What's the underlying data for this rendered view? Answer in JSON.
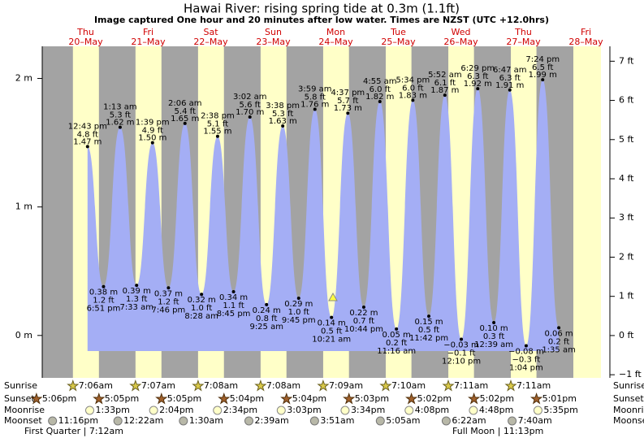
{
  "chart_data": {
    "type": "tide",
    "title": "Hawai River: rising  spring tide at 0.3m (1.1ft)",
    "subtitle": "Image captured One hour and 20 minutes after low water. Times are NZST (UTC +12.0hrs)",
    "days": [
      {
        "weekday": "Thu",
        "date": "20–May"
      },
      {
        "weekday": "Fri",
        "date": "21–May"
      },
      {
        "weekday": "Sat",
        "date": "22–May"
      },
      {
        "weekday": "Sun",
        "date": "23–May"
      },
      {
        "weekday": "Mon",
        "date": "24–May"
      },
      {
        "weekday": "Tue",
        "date": "25–May"
      },
      {
        "weekday": "Wed",
        "date": "26–May"
      },
      {
        "weekday": "Thu",
        "date": "27–May"
      },
      {
        "weekday": "Fri",
        "date": "28–May"
      }
    ],
    "ylim": [
      -0.33,
      2.25
    ],
    "yticks": [
      {
        "value": 0,
        "label": "0 m"
      },
      {
        "value": 1,
        "label": "1 m"
      },
      {
        "value": 2,
        "label": "2 m"
      }
    ],
    "y2lim": [
      -1.08,
      7.38
    ],
    "y2ticks": [
      {
        "value": -1,
        "label": "−1 ft"
      },
      {
        "value": 0,
        "label": "0 ft"
      },
      {
        "value": 1,
        "label": "1 ft"
      },
      {
        "value": 2,
        "label": "2 ft"
      },
      {
        "value": 3,
        "label": "3 ft"
      },
      {
        "value": 4,
        "label": "4 ft"
      },
      {
        "value": 5,
        "label": "5 ft"
      },
      {
        "value": 6,
        "label": "6 ft"
      },
      {
        "value": 7,
        "label": "7 ft"
      }
    ],
    "color": "#a4aef5",
    "tides": {
      "times": [
        "12:43 pm",
        "6:51 pm",
        "1:13 am",
        "7:33 am",
        "1:39 pm",
        "7:46 pm",
        "2:06 am",
        "8:28 am",
        "2:38 pm",
        "8:45 pm",
        "3:02 am",
        "9:25 am",
        "3:38 pm",
        "9:45 pm",
        "3:59 am",
        "10:21 am",
        "4:37 pm",
        "10:44 pm",
        "4:55 am",
        "11:16 am",
        "5:34 pm",
        "11:42 pm",
        "5:52 am",
        "12:10 pm",
        "6:29 pm",
        "12:39 am",
        "6:47 am",
        "1:04 pm",
        "7:24 pm",
        "1:35 am"
      ],
      "values": [
        1.47,
        0.38,
        1.62,
        0.39,
        1.5,
        0.37,
        1.65,
        0.32,
        1.55,
        0.34,
        1.7,
        0.24,
        1.63,
        0.29,
        1.76,
        0.14,
        1.73,
        0.22,
        1.82,
        0.05,
        1.83,
        0.15,
        1.87,
        -0.03,
        1.92,
        0.1,
        1.91,
        -0.08,
        1.99,
        0.06
      ],
      "value_labels": [
        "1.47 m",
        "0.38 m",
        "1.62 m",
        "0.39 m",
        "1.50 m",
        "0.37 m",
        "1.65 m",
        "0.32 m",
        "1.55 m",
        "0.34 m",
        "1.70 m",
        "0.24 m",
        "1.63 m",
        "0.29 m",
        "1.76 m",
        "0.14 m",
        "1.73 m",
        "0.22 m",
        "1.82 m",
        "0.05 m",
        "1.83 m",
        "0.15 m",
        "1.87 m",
        "−0.03 m",
        "1.92 m",
        "0.10 m",
        "1.91 m",
        "−0.08 m",
        "1.99 m",
        "0.06 m"
      ],
      "ft_labels": [
        "4.8 ft",
        "1.2 ft",
        "5.3 ft",
        "1.3 ft",
        "4.9 ft",
        "1.2 ft",
        "5.4 ft",
        "1.0 ft",
        "5.1 ft",
        "1.1 ft",
        "5.6 ft",
        "0.8 ft",
        "5.3 ft",
        "1.0 ft",
        "5.8 ft",
        "0.5 ft",
        "5.7 ft",
        "0.7 ft",
        "6.0 ft",
        "0.2 ft",
        "6.0 ft",
        "0.5 ft",
        "6.1 ft",
        "−0.1 ft",
        "6.3 ft",
        "0.3 ft",
        "6.3 ft",
        "−0.3 ft",
        "6.5 ft",
        "0.2 ft"
      ]
    },
    "rows": [
      {
        "label": "Sunrise",
        "times": [
          "7:06am",
          "7:07am",
          "7:08am",
          "7:08am",
          "7:09am",
          "7:10am",
          "7:11am",
          "7:11am"
        ]
      },
      {
        "label": "Sunset",
        "times": [
          "5:06pm",
          "5:05pm",
          "5:05pm",
          "5:04pm",
          "5:04pm",
          "5:03pm",
          "5:02pm",
          "5:02pm",
          "5:01pm"
        ]
      },
      {
        "label": "Moonrise",
        "times": [
          "1:33pm",
          "2:04pm",
          "2:34pm",
          "3:03pm",
          "3:34pm",
          "4:08pm",
          "4:48pm",
          "5:35pm"
        ]
      },
      {
        "label": "Moonset",
        "times": [
          "11:16pm",
          "12:22am",
          "1:30am",
          "2:39am",
          "3:51am",
          "5:05am",
          "6:22am",
          "7:40am"
        ]
      }
    ],
    "moon_phases": [
      "First Quarter | 7:12am",
      "Full Moon | 11:13pm"
    ]
  }
}
